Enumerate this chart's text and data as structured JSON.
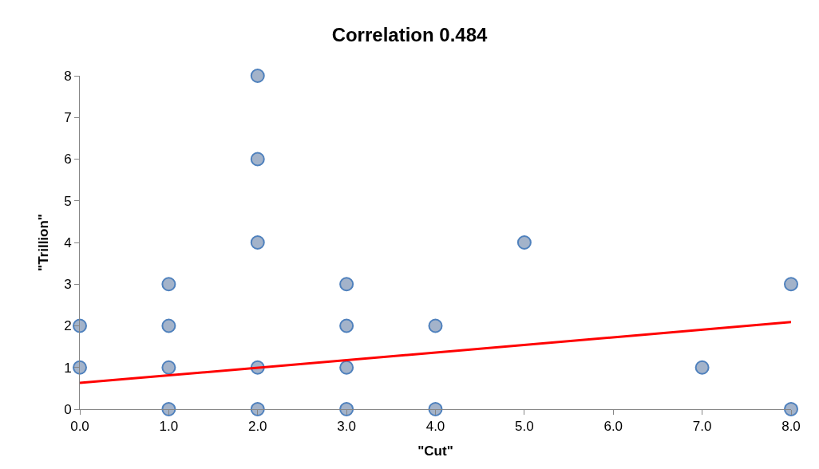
{
  "chart_data": {
    "type": "scatter",
    "title": "Correlation 0.484",
    "xlabel": "\"Cut\"",
    "ylabel": "\"Trillion\"",
    "xlim": [
      0,
      8
    ],
    "xticks": [
      {
        "value": 0,
        "label": "0.0"
      },
      {
        "value": 1,
        "label": "1.0"
      },
      {
        "value": 2,
        "label": "2.0"
      },
      {
        "value": 3,
        "label": "3.0"
      },
      {
        "value": 4,
        "label": "4.0"
      },
      {
        "value": 5,
        "label": "5.0"
      },
      {
        "value": 6,
        "label": "6.0"
      },
      {
        "value": 7,
        "label": "7.0"
      },
      {
        "value": 8,
        "label": "8.0"
      }
    ],
    "ylim": [
      0,
      8
    ],
    "yticks": [
      0,
      1,
      2,
      3,
      4,
      5,
      6,
      7,
      8
    ],
    "grid": false,
    "legend": false,
    "marker": "circle",
    "series": [
      {
        "color": "#a3b3ca",
        "x": [
          0,
          0,
          1,
          1,
          1,
          1,
          2,
          2,
          2,
          2,
          2,
          3,
          3,
          3,
          3,
          4,
          4,
          5,
          7,
          8,
          8
        ],
        "values": [
          2,
          1,
          3,
          2,
          1,
          0,
          8,
          6,
          4,
          1,
          0,
          3,
          2,
          1,
          0,
          2,
          0,
          4,
          1,
          3,
          0
        ]
      },
      {
        "type": "line",
        "color": "#ff0000",
        "x": [
          0,
          8
        ],
        "values": [
          0.63,
          2.09
        ],
        "marker": "none"
      }
    ]
  }
}
